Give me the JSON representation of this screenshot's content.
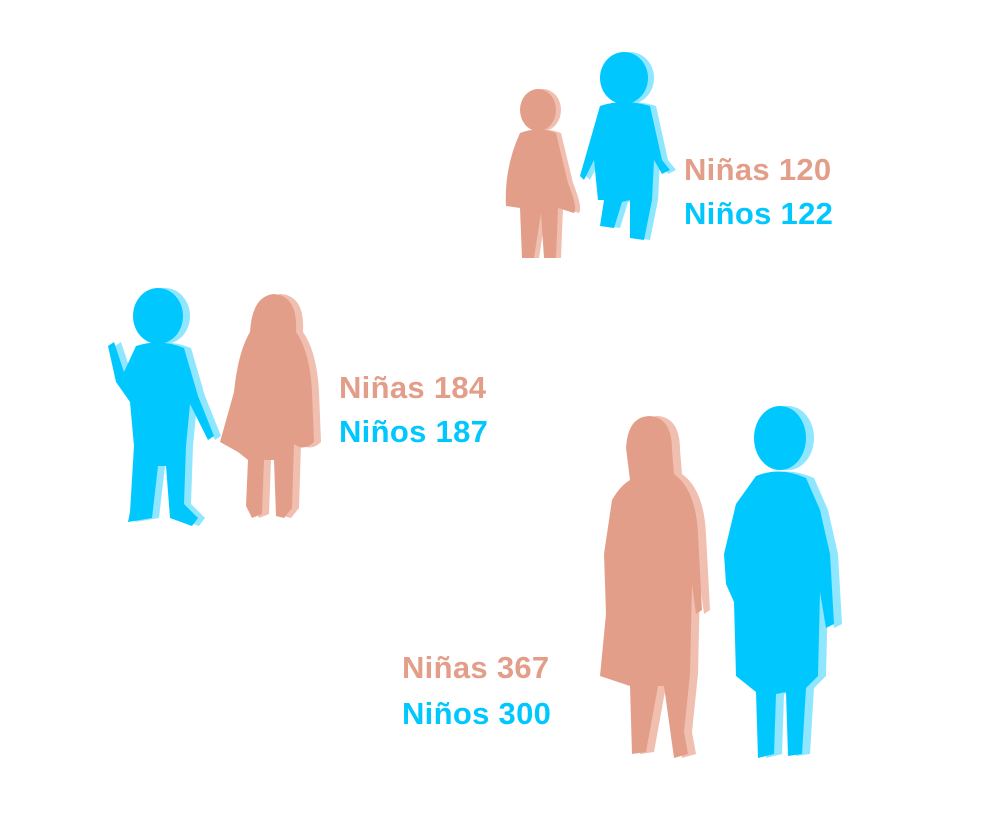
{
  "colors": {
    "girl": "#e39e89",
    "boy": "#00c8ff",
    "girl_shadow": "#f0bfb0",
    "boy_shadow": "#8fe6ff"
  },
  "groups": [
    {
      "girls": "Niñas 120",
      "boys": "Niños 122"
    },
    {
      "girls": "Niñas 184",
      "boys": "Niños 187"
    },
    {
      "girls": "Niñas 367",
      "boys": "Niños 300"
    }
  ]
}
